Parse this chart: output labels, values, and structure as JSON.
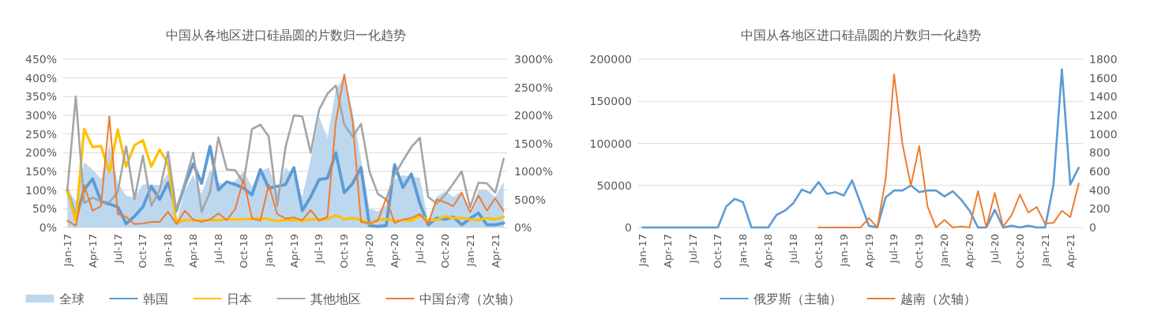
{
  "chart_data": [
    {
      "type": "line",
      "title": "中国从各地区进口硅晶圆的片数归一化趋势",
      "categories": [
        "Jan-17",
        null,
        null,
        "Apr-17",
        null,
        null,
        "Jul-17",
        null,
        null,
        "Oct-17",
        null,
        null,
        "Jan-18",
        null,
        null,
        "Apr-18",
        null,
        null,
        "Jul-18",
        null,
        null,
        "Oct-18",
        null,
        null,
        "Jan-19",
        null,
        null,
        "Apr-19",
        null,
        null,
        "Jul-19",
        null,
        null,
        "Oct-19",
        null,
        null,
        "Jan-20",
        null,
        null,
        "Apr-20",
        null,
        null,
        "Jul-20",
        null,
        null,
        "Oct-20",
        null,
        null,
        "Jan-21",
        null,
        null,
        "Apr-21",
        null
      ],
      "series": [
        {
          "name": "全球",
          "type": "area",
          "color": "#bdd7ee",
          "values": [
            100,
            70,
            175,
            155,
            130,
            220,
            120,
            85,
            80,
            115,
            115,
            113,
            145,
            15,
            100,
            140,
            90,
            155,
            120,
            115,
            125,
            150,
            110,
            150,
            160,
            100,
            160,
            140,
            82,
            183,
            297,
            240,
            369,
            405,
            310,
            183,
            50,
            43,
            60,
            129,
            140,
            136,
            133,
            18,
            82,
            97,
            82,
            97,
            39,
            100,
            100,
            82,
            122
          ]
        },
        {
          "name": "韩国",
          "color": "#5b9bd5",
          "values": [
            100,
            25,
            100,
            130,
            70,
            63,
            55,
            10,
            30,
            55,
            110,
            75,
            120,
            45,
            115,
            170,
            118,
            217,
            100,
            122,
            115,
            105,
            87,
            155,
            105,
            110,
            115,
            160,
            45,
            82,
            128,
            132,
            200,
            93,
            118,
            160,
            5,
            3,
            5,
            168,
            107,
            143,
            65,
            7,
            25,
            22,
            28,
            7,
            24,
            39,
            7,
            7,
            12
          ]
        },
        {
          "name": "日本",
          "color": "#ffc000",
          "values": [
            100,
            18,
            263,
            215,
            218,
            148,
            262,
            163,
            220,
            233,
            163,
            208,
            170,
            12,
            20,
            19,
            20,
            20,
            20,
            22,
            22,
            22,
            23,
            25,
            22,
            17,
            20,
            20,
            17,
            22,
            22,
            22,
            33,
            22,
            25,
            20,
            10,
            22,
            22,
            18,
            20,
            18,
            32,
            20,
            20,
            30,
            25,
            25,
            22,
            20,
            25,
            22,
            28
          ]
        },
        {
          "name": "其他地区",
          "color": "#a5a5a5",
          "values": [
            100,
            350,
            65,
            80,
            70,
            67,
            95,
            217,
            75,
            192,
            58,
            100,
            202,
            42,
            120,
            200,
            42,
            95,
            241,
            155,
            153,
            120,
            263,
            275,
            243,
            57,
            215,
            300,
            297,
            200,
            315,
            358,
            380,
            276,
            243,
            277,
            150,
            90,
            75,
            140,
            179,
            215,
            240,
            82,
            64,
            86,
            118,
            150,
            54,
            120,
            118,
            93,
            184
          ]
        },
        {
          "name": "中国台湾（次轴）",
          "color": "#ed7d31",
          "axis": "y2",
          "values": [
            120,
            30,
            760,
            300,
            380,
            1980,
            240,
            190,
            60,
            70,
            100,
            100,
            280,
            60,
            300,
            140,
            100,
            140,
            250,
            130,
            330,
            860,
            160,
            120,
            760,
            240,
            160,
            180,
            130,
            310,
            120,
            190,
            1890,
            2730,
            1890,
            100,
            70,
            120,
            520,
            80,
            140,
            170,
            240,
            70,
            500,
            450,
            380,
            620,
            270,
            570,
            300,
            520,
            290
          ]
        }
      ],
      "ylim": [
        0,
        450
      ],
      "yticks": [
        {
          "value": 0,
          "label": "0%"
        },
        {
          "value": 50,
          "label": "50%"
        },
        {
          "value": 100,
          "label": "100%"
        },
        {
          "value": 150,
          "label": "150%"
        },
        {
          "value": 200,
          "label": "200%"
        },
        {
          "value": 250,
          "label": "250%"
        },
        {
          "value": 300,
          "label": "300%"
        },
        {
          "value": 350,
          "label": "350%"
        },
        {
          "value": 400,
          "label": "400%"
        },
        {
          "value": 450,
          "label": "450%"
        }
      ],
      "y2lim": [
        0,
        3000
      ],
      "y2ticks": [
        {
          "value": 0,
          "label": "0%"
        },
        {
          "value": 500,
          "label": "500%"
        },
        {
          "value": 1000,
          "label": "1000%"
        },
        {
          "value": 1500,
          "label": "1500%"
        },
        {
          "value": 2000,
          "label": "2000%"
        },
        {
          "value": 2500,
          "label": "2500%"
        },
        {
          "value": 3000,
          "label": "3000%"
        }
      ],
      "grid": "y",
      "legend": "bottom"
    },
    {
      "type": "line",
      "title": "中国从各地区进口硅晶圆的片数归一化趋势",
      "categories": [
        "Jan-17",
        null,
        null,
        "Apr-17",
        null,
        null,
        "Jul-17",
        null,
        null,
        "Oct-17",
        null,
        null,
        "Jan-18",
        null,
        null,
        "Apr-18",
        null,
        null,
        "Jul-18",
        null,
        null,
        "Oct-18",
        null,
        null,
        "Jan-19",
        null,
        null,
        "Apr-19",
        null,
        null,
        "Jul-19",
        null,
        null,
        "Oct-19",
        null,
        null,
        "Jan-20",
        null,
        null,
        "Apr-20",
        null,
        null,
        "Jul-20",
        null,
        null,
        "Oct-20",
        null,
        null,
        "Jan-21",
        null,
        null,
        "Apr-21",
        null
      ],
      "series": [
        {
          "name": "俄罗斯（主轴）",
          "color": "#5b9bd5",
          "values": [
            0,
            0,
            0,
            0,
            0,
            0,
            0,
            0,
            0,
            0,
            25000,
            34000,
            30000,
            0,
            0,
            0,
            15000,
            20000,
            29000,
            45000,
            41000,
            54000,
            40000,
            42000,
            38000,
            56000,
            29000,
            2000,
            0,
            36000,
            44000,
            44000,
            50000,
            42000,
            44000,
            44000,
            37000,
            43000,
            33000,
            20000,
            0,
            0,
            21000,
            0,
            2000,
            0,
            2000,
            0,
            0,
            51000,
            188000,
            51000,
            71000
          ]
        },
        {
          "name": "越南（次轴）",
          "color": "#ed7d31",
          "axis": "y2",
          "values": [
            null,
            null,
            null,
            null,
            null,
            null,
            null,
            null,
            null,
            null,
            null,
            null,
            null,
            null,
            null,
            null,
            null,
            null,
            null,
            null,
            null,
            0,
            0,
            0,
            0,
            0,
            0,
            100,
            0,
            520,
            1640,
            890,
            450,
            870,
            220,
            0,
            80,
            0,
            10,
            0,
            390,
            0,
            370,
            10,
            130,
            350,
            160,
            220,
            40,
            50,
            180,
            110,
            470
          ]
        }
      ],
      "ylim": [
        0,
        200000
      ],
      "yticks": [
        0,
        50000,
        100000,
        150000,
        200000
      ],
      "y2lim": [
        0,
        1800
      ],
      "y2ticks": [
        0,
        200,
        400,
        600,
        800,
        1000,
        1200,
        1400,
        1600,
        1800
      ],
      "grid": "y",
      "legend": "bottom"
    }
  ]
}
